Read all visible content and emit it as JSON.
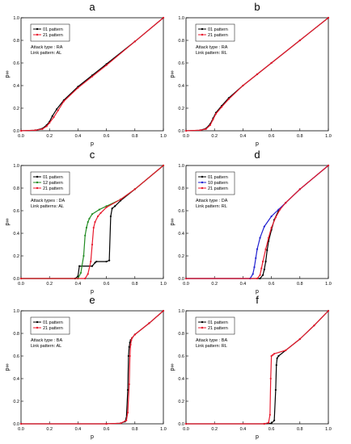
{
  "colors": {
    "series_01": "#000000",
    "series_12": "#228b22",
    "series_10": "#1f1fd0",
    "series_21": "#e8192c",
    "extra_faint": "#8a6bd6"
  },
  "chart_data": [
    {
      "panel": "a",
      "type": "line",
      "xlabel": "p",
      "ylabel": "p∞",
      "xlim": [
        0,
        1
      ],
      "ylim": [
        0,
        1
      ],
      "xticks": [
        "0.0",
        "0.2",
        "0.4",
        "0.6",
        "0.8",
        "1.0"
      ],
      "yticks": [
        "0.0",
        "0.2",
        "0.4",
        "0.6",
        "0.8",
        "1.0"
      ],
      "legend": [
        "01 pattern",
        "21 pattern"
      ],
      "annotation": [
        "Attack type : RA",
        "Link pattern: AL"
      ],
      "series": [
        {
          "name": "01 pattern",
          "key": "01",
          "x": [
            0,
            0.1,
            0.15,
            0.18,
            0.2,
            0.22,
            0.25,
            0.3,
            0.4,
            0.5,
            0.6,
            0.8,
            1.0
          ],
          "y": [
            0,
            0.005,
            0.02,
            0.05,
            0.08,
            0.13,
            0.19,
            0.27,
            0.39,
            0.49,
            0.59,
            0.79,
            1.0
          ]
        },
        {
          "name": "21 pattern",
          "key": "21",
          "x": [
            0,
            0.1,
            0.15,
            0.18,
            0.2,
            0.23,
            0.26,
            0.3,
            0.4,
            0.5,
            0.6,
            0.8,
            1.0
          ],
          "y": [
            0,
            0.005,
            0.015,
            0.04,
            0.07,
            0.12,
            0.18,
            0.26,
            0.38,
            0.48,
            0.58,
            0.79,
            1.0
          ]
        }
      ]
    },
    {
      "panel": "b",
      "type": "line",
      "xlabel": "p",
      "ylabel": "p∞",
      "xlim": [
        0,
        1
      ],
      "ylim": [
        0,
        1
      ],
      "xticks": [
        "0.0",
        "0.2",
        "0.4",
        "0.6",
        "0.8",
        "1.0"
      ],
      "yticks": [
        "0.0",
        "0.2",
        "0.4",
        "0.6",
        "0.8",
        "1.0"
      ],
      "legend": [
        "01 pattern",
        "21 pattern"
      ],
      "annotation": [
        "Attack type : RA",
        "Link pattern: RL"
      ],
      "series": [
        {
          "name": "01 pattern",
          "key": "01",
          "x": [
            0,
            0.1,
            0.14,
            0.17,
            0.19,
            0.21,
            0.25,
            0.3,
            0.4,
            0.5,
            0.6,
            0.8,
            1.0
          ],
          "y": [
            0,
            0.005,
            0.02,
            0.06,
            0.11,
            0.16,
            0.22,
            0.29,
            0.4,
            0.5,
            0.6,
            0.8,
            1.0
          ]
        },
        {
          "name": "21 pattern",
          "key": "21",
          "x": [
            0,
            0.1,
            0.14,
            0.17,
            0.19,
            0.21,
            0.25,
            0.3,
            0.4,
            0.5,
            0.6,
            0.8,
            1.0
          ],
          "y": [
            0,
            0.005,
            0.015,
            0.05,
            0.1,
            0.15,
            0.21,
            0.28,
            0.4,
            0.5,
            0.6,
            0.8,
            1.0
          ]
        }
      ]
    },
    {
      "panel": "c",
      "type": "line",
      "xlabel": "p",
      "ylabel": "p∞",
      "xlim": [
        0,
        1
      ],
      "ylim": [
        0,
        1
      ],
      "xticks": [
        "0.0",
        "0.2",
        "0.4",
        "0.6",
        "0.8",
        "1.0"
      ],
      "yticks": [
        "0.0",
        "0.2",
        "0.4",
        "0.6",
        "0.8",
        "1.0"
      ],
      "legend": [
        "01 pattern",
        "12 pattern",
        "21 pattern"
      ],
      "annotation": [
        "Attack types : DA",
        "Link patterns: AL"
      ],
      "series": [
        {
          "name": "01 pattern",
          "key": "01",
          "x": [
            0,
            0.38,
            0.4,
            0.41,
            0.5,
            0.52,
            0.53,
            0.6,
            0.62,
            0.63,
            0.64,
            0.66,
            0.7,
            0.8,
            1.0
          ],
          "y": [
            0,
            0.0,
            0.02,
            0.11,
            0.11,
            0.14,
            0.15,
            0.15,
            0.16,
            0.55,
            0.62,
            0.64,
            0.69,
            0.79,
            1.0
          ]
        },
        {
          "name": "12 pattern",
          "key": "12",
          "x": [
            0,
            0.4,
            0.42,
            0.44,
            0.45,
            0.46,
            0.47,
            0.48,
            0.5,
            0.55,
            0.6,
            0.7,
            0.8,
            1.0
          ],
          "y": [
            0,
            0.0,
            0.05,
            0.2,
            0.38,
            0.45,
            0.5,
            0.53,
            0.57,
            0.61,
            0.64,
            0.7,
            0.79,
            1.0
          ]
        },
        {
          "name": "21 pattern",
          "key": "21",
          "x": [
            0,
            0.45,
            0.47,
            0.49,
            0.5,
            0.51,
            0.52,
            0.54,
            0.56,
            0.6,
            0.7,
            0.8,
            1.0
          ],
          "y": [
            0,
            0.0,
            0.04,
            0.15,
            0.3,
            0.45,
            0.5,
            0.55,
            0.58,
            0.63,
            0.7,
            0.79,
            1.0
          ]
        }
      ]
    },
    {
      "panel": "d",
      "type": "line",
      "xlabel": "p",
      "ylabel": "p∞",
      "xlim": [
        0,
        1
      ],
      "ylim": [
        0,
        1
      ],
      "xticks": [
        "0.0",
        "0.2",
        "0.4",
        "0.6",
        "0.8",
        "1.0"
      ],
      "yticks": [
        "0.0",
        "0.2",
        "0.4",
        "0.6",
        "0.8",
        "1.0"
      ],
      "legend": [
        "01 pattern",
        "10 pattern",
        "21 pattern"
      ],
      "annotation": [
        "Attack type : DA",
        "Link pattern: RL"
      ],
      "series": [
        {
          "name": "01 pattern",
          "key": "01",
          "x": [
            0,
            0.52,
            0.54,
            0.55,
            0.56,
            0.57,
            0.58,
            0.6,
            0.62,
            0.65,
            0.7,
            0.8,
            1.0
          ],
          "y": [
            0,
            0.0,
            0.03,
            0.08,
            0.15,
            0.25,
            0.33,
            0.43,
            0.52,
            0.6,
            0.67,
            0.79,
            1.0
          ]
        },
        {
          "name": "10 pattern",
          "key": "10",
          "x": [
            0,
            0.45,
            0.47,
            0.48,
            0.49,
            0.5,
            0.52,
            0.55,
            0.6,
            0.65,
            0.7,
            0.8,
            1.0
          ],
          "y": [
            0,
            0.0,
            0.04,
            0.1,
            0.18,
            0.26,
            0.36,
            0.46,
            0.55,
            0.61,
            0.67,
            0.79,
            1.0
          ]
        },
        {
          "name": "21 pattern",
          "key": "21",
          "x": [
            0,
            0.5,
            0.52,
            0.53,
            0.54,
            0.56,
            0.58,
            0.6,
            0.63,
            0.66,
            0.7,
            0.8,
            1.0
          ],
          "y": [
            0,
            0.0,
            0.03,
            0.09,
            0.15,
            0.26,
            0.36,
            0.45,
            0.54,
            0.61,
            0.67,
            0.79,
            1.0
          ]
        }
      ]
    },
    {
      "panel": "e",
      "type": "line",
      "xlabel": "p",
      "ylabel": "p∞",
      "xlim": [
        0,
        1
      ],
      "ylim": [
        0,
        1
      ],
      "xticks": [
        "0.0",
        "0.2",
        "0.4",
        "0.6",
        "0.8",
        "1.0"
      ],
      "yticks": [
        "0.0",
        "0.2",
        "0.4",
        "0.6",
        "0.8",
        "1.0"
      ],
      "legend": [
        "01 pattern",
        "21 pattern"
      ],
      "annotation": [
        "Attack type : BA",
        "Link pattern: AL"
      ],
      "series": [
        {
          "name": "01 pattern",
          "key": "01",
          "x": [
            0,
            0.6,
            0.7,
            0.73,
            0.74,
            0.75,
            0.755,
            0.76,
            0.765,
            0.77,
            0.78,
            0.8,
            0.9,
            1.0
          ],
          "y": [
            0,
            0.0,
            0.005,
            0.02,
            0.05,
            0.3,
            0.6,
            0.68,
            0.72,
            0.74,
            0.76,
            0.79,
            0.89,
            1.0
          ]
        },
        {
          "name": "21 pattern",
          "key": "21",
          "x": [
            0,
            0.6,
            0.7,
            0.74,
            0.75,
            0.76,
            0.765,
            0.77,
            0.775,
            0.78,
            0.8,
            0.9,
            1.0
          ],
          "y": [
            0,
            0.0,
            0.005,
            0.03,
            0.1,
            0.35,
            0.6,
            0.7,
            0.74,
            0.76,
            0.79,
            0.89,
            1.0
          ]
        }
      ]
    },
    {
      "panel": "f",
      "type": "line",
      "xlabel": "p",
      "ylabel": "p∞",
      "xlim": [
        0,
        1
      ],
      "ylim": [
        0,
        1
      ],
      "xticks": [
        "0.0",
        "0.2",
        "0.4",
        "0.6",
        "0.8",
        "1.0"
      ],
      "yticks": [
        "0.0",
        "0.2",
        "0.4",
        "0.6",
        "0.8",
        "1.0"
      ],
      "legend": [
        "01 pattern",
        "21 pattern"
      ],
      "annotation": [
        "Attack type : BA",
        "Link pattern: RL"
      ],
      "series": [
        {
          "name": "01 pattern",
          "key": "01",
          "x": [
            0,
            0.55,
            0.6,
            0.62,
            0.63,
            0.635,
            0.64,
            0.65,
            0.7,
            0.8,
            0.9,
            1.0
          ],
          "y": [
            0,
            0.0,
            0.005,
            0.03,
            0.3,
            0.52,
            0.58,
            0.6,
            0.65,
            0.75,
            0.87,
            1.0
          ]
        },
        {
          "name": "21 pattern",
          "key": "21",
          "x": [
            0,
            0.55,
            0.58,
            0.59,
            0.595,
            0.6,
            0.61,
            0.62,
            0.7,
            0.8,
            0.9,
            1.0
          ],
          "y": [
            0,
            0.0,
            0.01,
            0.08,
            0.4,
            0.6,
            0.61,
            0.62,
            0.65,
            0.75,
            0.87,
            1.0
          ]
        }
      ]
    }
  ]
}
